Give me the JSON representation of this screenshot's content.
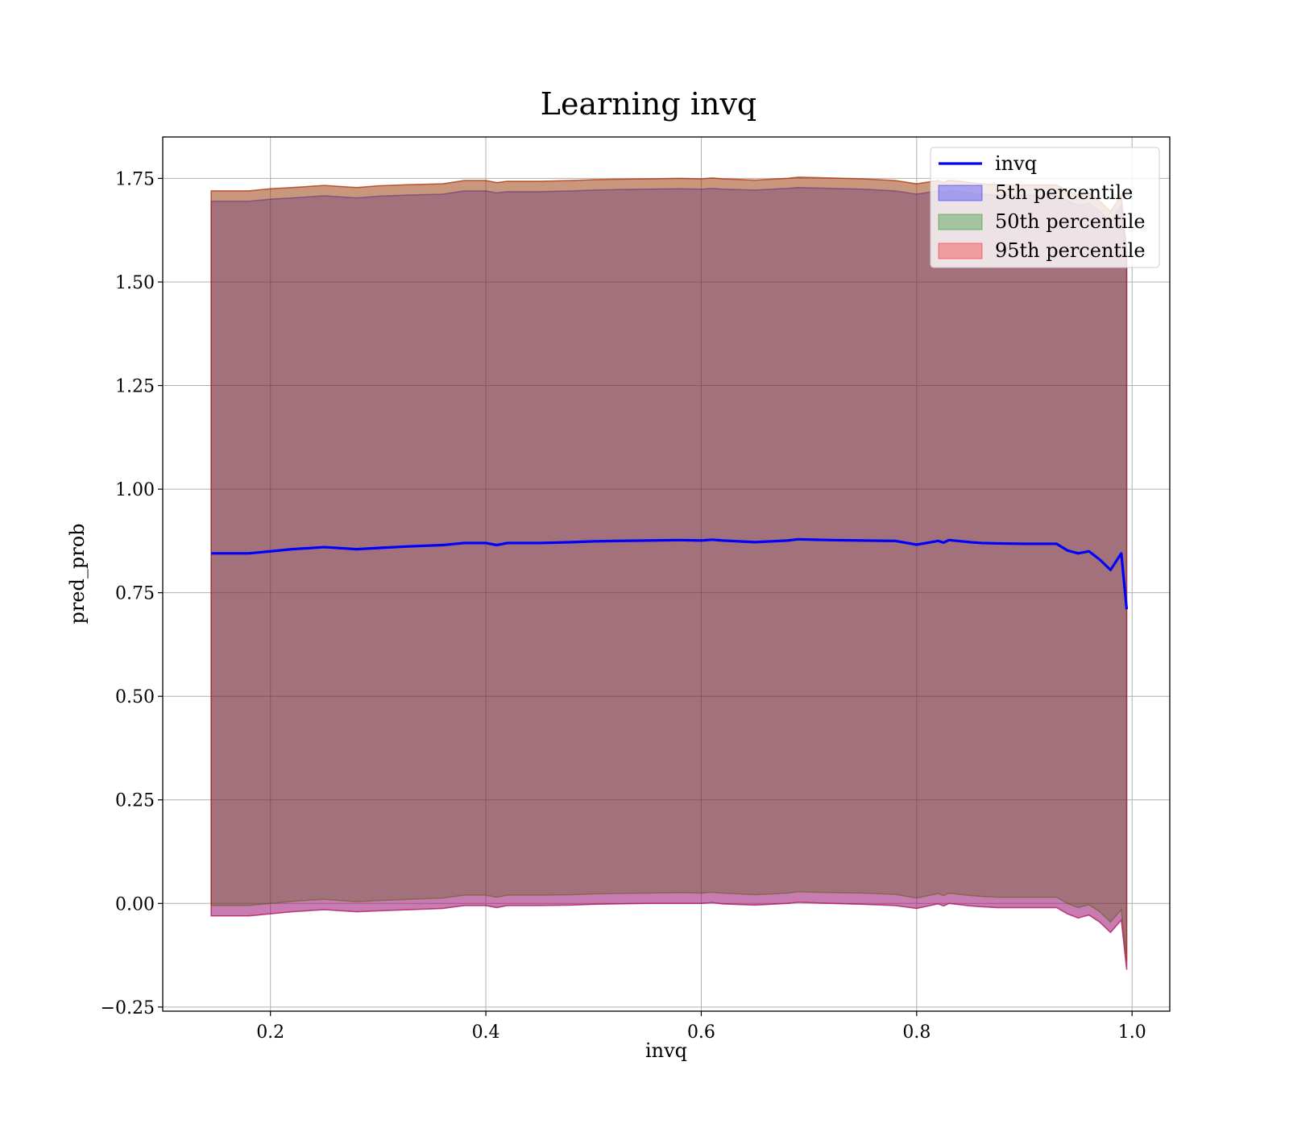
{
  "chart_data": {
    "type": "area",
    "title": "Learning invq",
    "xlabel": "invq",
    "ylabel": "pred_prob",
    "xlim": [
      0.1,
      1.035
    ],
    "ylim": [
      -0.26,
      1.85
    ],
    "xticks": [
      0.2,
      0.4,
      0.6,
      0.8,
      1.0
    ],
    "xtick_labels": [
      "0.2",
      "0.4",
      "0.6",
      "0.8",
      "1.0"
    ],
    "yticks": [
      -0.25,
      0.0,
      0.25,
      0.5,
      0.75,
      1.0,
      1.25,
      1.5,
      1.75
    ],
    "ytick_labels": [
      "−0.25",
      "0.00",
      "0.25",
      "0.50",
      "0.75",
      "1.00",
      "1.25",
      "1.50",
      "1.75"
    ],
    "grid": true,
    "legend_position": "top-right",
    "x": [
      0.145,
      0.18,
      0.2,
      0.22,
      0.25,
      0.28,
      0.3,
      0.33,
      0.36,
      0.38,
      0.4,
      0.41,
      0.42,
      0.45,
      0.48,
      0.5,
      0.52,
      0.55,
      0.58,
      0.6,
      0.61,
      0.62,
      0.65,
      0.68,
      0.69,
      0.72,
      0.75,
      0.78,
      0.8,
      0.82,
      0.825,
      0.83,
      0.85,
      0.86,
      0.875,
      0.9,
      0.93,
      0.94,
      0.95,
      0.96,
      0.97,
      0.98,
      0.99,
      0.995
    ],
    "series": [
      {
        "name": "invq",
        "type": "line",
        "color": "#0000ff",
        "values": [
          0.845,
          0.845,
          0.85,
          0.855,
          0.86,
          0.855,
          0.858,
          0.862,
          0.865,
          0.87,
          0.87,
          0.865,
          0.87,
          0.87,
          0.872,
          0.874,
          0.875,
          0.876,
          0.877,
          0.876,
          0.878,
          0.876,
          0.872,
          0.876,
          0.879,
          0.877,
          0.876,
          0.875,
          0.866,
          0.875,
          0.871,
          0.877,
          0.872,
          0.87,
          0.869,
          0.868,
          0.868,
          0.852,
          0.845,
          0.85,
          0.83,
          0.805,
          0.845,
          0.71
        ]
      },
      {
        "name": "5th percentile",
        "type": "band",
        "color": "#0000ff",
        "lower": [
          -0.03,
          -0.03,
          -0.025,
          -0.02,
          -0.015,
          -0.02,
          -0.018,
          -0.015,
          -0.012,
          -0.005,
          -0.005,
          -0.01,
          -0.005,
          -0.005,
          -0.004,
          -0.002,
          -0.001,
          0.0,
          0.0,
          0.0,
          0.002,
          -0.001,
          -0.004,
          0.0,
          0.003,
          0.0,
          -0.002,
          -0.005,
          -0.012,
          -0.001,
          -0.006,
          0.0,
          -0.006,
          -0.008,
          -0.01,
          -0.01,
          -0.01,
          -0.025,
          -0.035,
          -0.028,
          -0.045,
          -0.07,
          -0.04,
          -0.16
        ],
        "upper": [
          1.695,
          1.695,
          1.7,
          1.703,
          1.708,
          1.703,
          1.707,
          1.71,
          1.712,
          1.72,
          1.72,
          1.715,
          1.718,
          1.718,
          1.72,
          1.722,
          1.723,
          1.724,
          1.725,
          1.724,
          1.726,
          1.724,
          1.722,
          1.726,
          1.728,
          1.726,
          1.724,
          1.72,
          1.712,
          1.72,
          1.715,
          1.721,
          1.715,
          1.712,
          1.71,
          1.709,
          1.709,
          1.695,
          1.685,
          1.69,
          1.67,
          1.645,
          1.685,
          1.55
        ]
      },
      {
        "name": "50th percentile",
        "type": "band",
        "color": "#008000",
        "lower": [
          -0.005,
          -0.005,
          0.0,
          0.005,
          0.01,
          0.004,
          0.007,
          0.01,
          0.013,
          0.02,
          0.02,
          0.015,
          0.02,
          0.02,
          0.021,
          0.023,
          0.024,
          0.025,
          0.026,
          0.025,
          0.027,
          0.025,
          0.021,
          0.025,
          0.028,
          0.026,
          0.025,
          0.022,
          0.013,
          0.024,
          0.019,
          0.025,
          0.019,
          0.017,
          0.015,
          0.015,
          0.015,
          0.0,
          -0.01,
          -0.003,
          -0.02,
          -0.045,
          -0.015,
          -0.14
        ],
        "upper": [
          1.72,
          1.72,
          1.725,
          1.728,
          1.733,
          1.728,
          1.732,
          1.735,
          1.737,
          1.745,
          1.745,
          1.74,
          1.743,
          1.743,
          1.745,
          1.747,
          1.748,
          1.749,
          1.75,
          1.749,
          1.751,
          1.749,
          1.746,
          1.75,
          1.753,
          1.751,
          1.749,
          1.745,
          1.737,
          1.745,
          1.74,
          1.746,
          1.74,
          1.737,
          1.735,
          1.734,
          1.734,
          1.72,
          1.71,
          1.715,
          1.695,
          1.67,
          1.71,
          1.575
        ]
      },
      {
        "name": "95th percentile",
        "type": "band",
        "color": "#ff0000",
        "lower": [
          -0.03,
          -0.03,
          -0.025,
          -0.02,
          -0.015,
          -0.02,
          -0.018,
          -0.015,
          -0.012,
          -0.005,
          -0.005,
          -0.01,
          -0.005,
          -0.005,
          -0.004,
          -0.002,
          -0.001,
          0.0,
          0.0,
          0.0,
          0.002,
          -0.001,
          -0.004,
          0.0,
          0.003,
          0.0,
          -0.002,
          -0.005,
          -0.012,
          -0.001,
          -0.006,
          0.0,
          -0.006,
          -0.008,
          -0.01,
          -0.01,
          -0.01,
          -0.025,
          -0.035,
          -0.028,
          -0.045,
          -0.07,
          -0.04,
          -0.16
        ],
        "upper": [
          1.72,
          1.72,
          1.725,
          1.728,
          1.733,
          1.728,
          1.732,
          1.735,
          1.737,
          1.745,
          1.745,
          1.74,
          1.743,
          1.743,
          1.745,
          1.747,
          1.748,
          1.749,
          1.75,
          1.749,
          1.751,
          1.749,
          1.746,
          1.75,
          1.753,
          1.751,
          1.749,
          1.745,
          1.737,
          1.745,
          1.74,
          1.746,
          1.74,
          1.737,
          1.735,
          1.734,
          1.734,
          1.72,
          1.71,
          1.715,
          1.695,
          1.67,
          1.71,
          1.575
        ]
      }
    ]
  }
}
